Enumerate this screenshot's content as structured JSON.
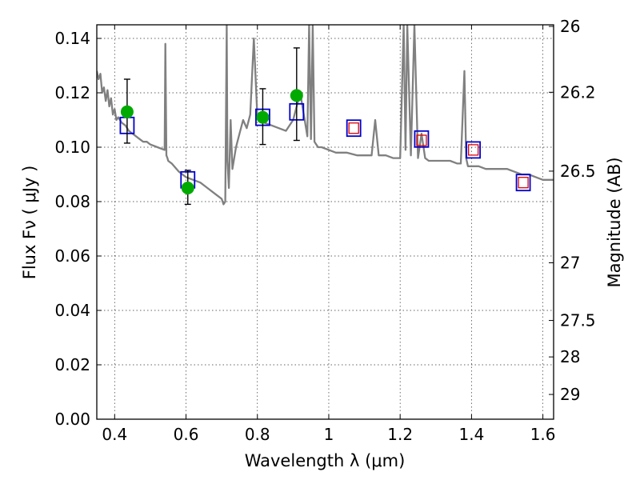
{
  "chart_data": {
    "type": "line",
    "title": "",
    "xlabel": "Wavelength  λ (μm)",
    "ylabel": "Flux  Fν  ( μJy )",
    "y2label": "Magnitude (AB)",
    "xlim": [
      0.35,
      1.63
    ],
    "ylim": [
      0.0,
      0.145
    ],
    "grid": true,
    "x_ticks": [
      0.4,
      0.6,
      0.8,
      1.0,
      1.2,
      1.4,
      1.6
    ],
    "x_tick_labels": [
      "0.4",
      "0.6",
      "0.8",
      "1",
      "1.2",
      "1.4",
      "1.6"
    ],
    "y_ticks": [
      0.0,
      0.02,
      0.04,
      0.06,
      0.08,
      0.1,
      0.12,
      0.14
    ],
    "y_tick_labels": [
      "0.00",
      "0.02",
      "0.04",
      "0.06",
      "0.08",
      "0.10",
      "0.12",
      "0.14"
    ],
    "y2_ticks": [
      {
        "label": "26",
        "flux": 0.1445
      },
      {
        "label": "26.2",
        "flux": 0.1202
      },
      {
        "label": "26.5",
        "flux": 0.0912
      },
      {
        "label": "27",
        "flux": 0.0575
      },
      {
        "label": "27.5",
        "flux": 0.0363
      },
      {
        "label": "28",
        "flux": 0.0229
      },
      {
        "label": "29",
        "flux": 0.0091
      }
    ],
    "colors": {
      "spectrum": "#808080",
      "observed": "#00aa00",
      "model_blue": "#0000cc",
      "model_red": "#dd0000",
      "errorbar": "#000000"
    },
    "series": [
      {
        "kind": "spectrum",
        "x": [
          0.35,
          0.355,
          0.36,
          0.365,
          0.37,
          0.375,
          0.38,
          0.385,
          0.39,
          0.395,
          0.4,
          0.405,
          0.41,
          0.42,
          0.43,
          0.44,
          0.45,
          0.46,
          0.47,
          0.48,
          0.49,
          0.5,
          0.52,
          0.54,
          0.542,
          0.545,
          0.548,
          0.55,
          0.56,
          0.58,
          0.6,
          0.62,
          0.64,
          0.66,
          0.68,
          0.7,
          0.705,
          0.71,
          0.714,
          0.716,
          0.72,
          0.725,
          0.73,
          0.74,
          0.75,
          0.76,
          0.77,
          0.78,
          0.79,
          0.8,
          0.82,
          0.84,
          0.86,
          0.88,
          0.9,
          0.92,
          0.94,
          0.945,
          0.95,
          0.955,
          0.96,
          0.97,
          0.98,
          1.0,
          1.02,
          1.05,
          1.08,
          1.1,
          1.12,
          1.13,
          1.14,
          1.16,
          1.18,
          1.2,
          1.21,
          1.215,
          1.22,
          1.23,
          1.24,
          1.25,
          1.26,
          1.27,
          1.28,
          1.3,
          1.32,
          1.34,
          1.36,
          1.37,
          1.38,
          1.385,
          1.39,
          1.4,
          1.42,
          1.44,
          1.46,
          1.48,
          1.5,
          1.52,
          1.54,
          1.56,
          1.58,
          1.6,
          1.63
        ],
        "y": [
          0.128,
          0.125,
          0.127,
          0.12,
          0.122,
          0.117,
          0.121,
          0.115,
          0.118,
          0.112,
          0.114,
          0.11,
          0.111,
          0.109,
          0.108,
          0.106,
          0.105,
          0.104,
          0.103,
          0.102,
          0.102,
          0.101,
          0.1,
          0.099,
          0.138,
          0.097,
          0.096,
          0.095,
          0.094,
          0.091,
          0.089,
          0.088,
          0.087,
          0.085,
          0.083,
          0.081,
          0.079,
          0.08,
          0.145,
          0.095,
          0.085,
          0.11,
          0.092,
          0.1,
          0.105,
          0.11,
          0.107,
          0.112,
          0.14,
          0.111,
          0.109,
          0.108,
          0.107,
          0.106,
          0.11,
          0.12,
          0.104,
          0.145,
          0.103,
          0.145,
          0.102,
          0.1,
          0.1,
          0.099,
          0.098,
          0.098,
          0.097,
          0.097,
          0.097,
          0.11,
          0.097,
          0.097,
          0.096,
          0.096,
          0.145,
          0.099,
          0.145,
          0.097,
          0.145,
          0.096,
          0.105,
          0.096,
          0.095,
          0.095,
          0.095,
          0.095,
          0.094,
          0.094,
          0.128,
          0.096,
          0.093,
          0.093,
          0.093,
          0.092,
          0.092,
          0.092,
          0.092,
          0.091,
          0.09,
          0.09,
          0.089,
          0.088,
          0.088
        ]
      },
      {
        "kind": "observed",
        "x": [
          0.435,
          0.605,
          0.815,
          0.91
        ],
        "y": [
          0.113,
          0.085,
          0.111,
          0.119
        ],
        "err_low": [
          0.1015,
          0.079,
          0.101,
          0.1025
        ],
        "err_high": [
          0.125,
          0.0915,
          0.1215,
          0.1365
        ]
      },
      {
        "kind": "model_blue",
        "x": [
          0.435,
          0.605,
          0.815,
          0.91,
          1.07,
          1.26,
          1.405,
          1.545
        ],
        "y": [
          0.108,
          0.088,
          0.111,
          0.113,
          0.107,
          0.103,
          0.099,
          0.087
        ]
      },
      {
        "kind": "model_red",
        "x": [
          1.07,
          1.26,
          1.405,
          1.545
        ],
        "y": [
          0.107,
          0.1025,
          0.099,
          0.087
        ]
      }
    ]
  }
}
